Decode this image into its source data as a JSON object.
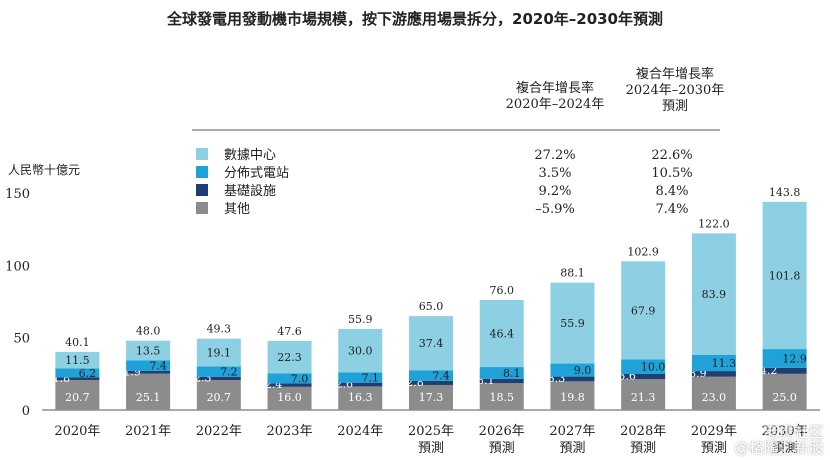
{
  "chart_data": {
    "type": "bar",
    "stacked": true,
    "title": "全球發電用發動機市場規模，按下游應用場景拆分，2020年–2030年預測",
    "ylabel": "人民幣十億元",
    "xlabel": "",
    "ylim": [
      0,
      150
    ],
    "yticks": [
      "0",
      "50",
      "100",
      "150"
    ],
    "grid": false,
    "legend_position": "top-left",
    "categories": [
      [
        "2020年"
      ],
      [
        "2021年"
      ],
      [
        "2022年"
      ],
      [
        "2023年"
      ],
      [
        "2024年"
      ],
      [
        "2025年",
        "預測"
      ],
      [
        "2026年",
        "預測"
      ],
      [
        "2027年",
        "預測"
      ],
      [
        "2028年",
        "預測"
      ],
      [
        "2029年",
        "預測"
      ],
      [
        "2030年",
        "預測"
      ]
    ],
    "series": [
      {
        "name": "其他",
        "color": "#8c8c8c",
        "values": [
          20.7,
          25.1,
          20.7,
          16.0,
          16.3,
          17.3,
          18.5,
          19.8,
          21.3,
          23.0,
          25.0
        ]
      },
      {
        "name": "基礎設施",
        "color": "#1f3f73",
        "values": [
          1.8,
          1.9,
          2.3,
          2.4,
          2.6,
          2.8,
          3.1,
          3.3,
          3.6,
          3.9,
          4.2
        ]
      },
      {
        "name": "分佈式電站",
        "color": "#1fa2d7",
        "values": [
          6.2,
          7.4,
          7.2,
          7.0,
          7.1,
          7.4,
          8.1,
          9.0,
          10.0,
          11.3,
          12.9
        ]
      },
      {
        "name": "數據中心",
        "color": "#8ed0e3",
        "values": [
          11.5,
          13.5,
          19.1,
          22.3,
          30.0,
          37.4,
          46.4,
          55.9,
          67.9,
          83.9,
          101.8
        ]
      }
    ],
    "totals": [
      "40.1",
      "48.0",
      "49.3",
      "47.6",
      "55.9",
      "65.0",
      "76.0",
      "88.1",
      "102.9",
      "122.0",
      "143.8"
    ],
    "cagr_table": {
      "headers": [
        [
          "複合年增長率",
          "2020年–2024年"
        ],
        [
          "複合年增長率",
          "2024年–2030年",
          "預測"
        ]
      ],
      "rows": [
        {
          "name": "數據中心",
          "color": "#8ed0e3",
          "v1": "27.2%",
          "v2": "22.6%"
        },
        {
          "name": "分佈式電站",
          "color": "#1fa2d7",
          "v1": "3.5%",
          "v2": "10.5%"
        },
        {
          "name": "基礎設施",
          "color": "#1f3f73",
          "v1": "9.2%",
          "v2": "8.4%"
        },
        {
          "name": "其他",
          "color": "#8c8c8c",
          "v1": "–5.9%",
          "v2": "7.4%"
        }
      ]
    }
  },
  "watermark": [
    "老虎社区",
    "@格隆汇新股"
  ]
}
